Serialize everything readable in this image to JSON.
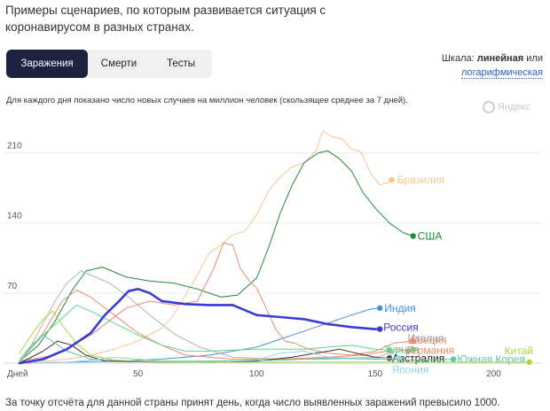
{
  "header": {
    "title": "Примеры сценариев, по которым развивается ситуация с коронавирусом в разных странах."
  },
  "tabs": [
    {
      "label": "Заражения",
      "active": true
    },
    {
      "label": "Смерти",
      "active": false
    },
    {
      "label": "Тесты",
      "active": false
    }
  ],
  "scale": {
    "prefix": "Шкала:",
    "linear": "линейная",
    "or": "или",
    "log": "логарифмическая"
  },
  "note": "Для каждого дня показано число новых случаев на миллион человек (скользящее среднее за 7 дней).",
  "watermark": "Яндекс",
  "footnote": "За точку отсчёта для данной страны принят день, когда число выявленных заражений превысило 1000.",
  "chart_data": {
    "type": "line",
    "xlabel": "Дней",
    "xlim": [
      0,
      220
    ],
    "ylim": [
      0,
      230
    ],
    "xticks": [
      50,
      100,
      150,
      200
    ],
    "yticks": [
      70,
      140,
      210
    ],
    "grid": true,
    "series": [
      {
        "name": "Бразилия",
        "color": "#f7c48e",
        "width": 1,
        "points": [
          [
            0,
            0
          ],
          [
            10,
            2
          ],
          [
            20,
            4
          ],
          [
            30,
            8
          ],
          [
            40,
            14
          ],
          [
            50,
            22
          ],
          [
            60,
            35
          ],
          [
            65,
            48
          ],
          [
            70,
            68
          ],
          [
            75,
            88
          ],
          [
            80,
            110
          ],
          [
            85,
            118
          ],
          [
            90,
            128
          ],
          [
            95,
            132
          ],
          [
            100,
            148
          ],
          [
            105,
            172
          ],
          [
            110,
            186
          ],
          [
            115,
            196
          ],
          [
            120,
            200
          ],
          [
            125,
            212
          ],
          [
            128,
            232
          ],
          [
            132,
            226
          ],
          [
            136,
            224
          ],
          [
            140,
            214
          ],
          [
            144,
            211
          ],
          [
            148,
            190
          ],
          [
            152,
            178
          ],
          [
            155,
            180
          ],
          [
            157,
            183
          ]
        ]
      },
      {
        "name": "США",
        "color": "#1f8a3a",
        "width": 1,
        "points": [
          [
            0,
            2
          ],
          [
            8,
            18
          ],
          [
            15,
            42
          ],
          [
            22,
            72
          ],
          [
            28,
            92
          ],
          [
            35,
            96
          ],
          [
            45,
            86
          ],
          [
            55,
            82
          ],
          [
            65,
            80
          ],
          [
            75,
            74
          ],
          [
            85,
            66
          ],
          [
            92,
            68
          ],
          [
            100,
            85
          ],
          [
            105,
            115
          ],
          [
            110,
            150
          ],
          [
            115,
            178
          ],
          [
            120,
            200
          ],
          [
            126,
            210
          ],
          [
            130,
            212
          ],
          [
            135,
            204
          ],
          [
            140,
            192
          ],
          [
            145,
            170
          ],
          [
            150,
            155
          ],
          [
            156,
            140
          ],
          [
            162,
            130
          ],
          [
            166,
            127
          ]
        ]
      },
      {
        "name": "Индия",
        "color": "#4a90d9",
        "width": 1,
        "points": [
          [
            0,
            0
          ],
          [
            20,
            1
          ],
          [
            40,
            2
          ],
          [
            60,
            4
          ],
          [
            80,
            8
          ],
          [
            100,
            16
          ],
          [
            110,
            24
          ],
          [
            120,
            32
          ],
          [
            130,
            40
          ],
          [
            140,
            48
          ],
          [
            148,
            54
          ],
          [
            152,
            55
          ]
        ]
      },
      {
        "name": "Россия",
        "color": "#3b3bd4",
        "width": 2.6,
        "points": [
          [
            0,
            0
          ],
          [
            10,
            4
          ],
          [
            20,
            14
          ],
          [
            30,
            30
          ],
          [
            36,
            48
          ],
          [
            42,
            62
          ],
          [
            46,
            72
          ],
          [
            50,
            74
          ],
          [
            55,
            70
          ],
          [
            60,
            62
          ],
          [
            70,
            59
          ],
          [
            80,
            58
          ],
          [
            90,
            58
          ],
          [
            100,
            48
          ],
          [
            110,
            46
          ],
          [
            120,
            44
          ],
          [
            130,
            39
          ],
          [
            140,
            36
          ],
          [
            150,
            34
          ],
          [
            152,
            34
          ]
        ]
      },
      {
        "name": "Италия",
        "color": "#b3b3b3",
        "width": 1,
        "points": [
          [
            0,
            4
          ],
          [
            5,
            18
          ],
          [
            10,
            40
          ],
          [
            15,
            62
          ],
          [
            20,
            80
          ],
          [
            26,
            92
          ],
          [
            30,
            88
          ],
          [
            38,
            80
          ],
          [
            46,
            66
          ],
          [
            56,
            46
          ],
          [
            66,
            28
          ],
          [
            76,
            16
          ],
          [
            90,
            6
          ],
          [
            110,
            4
          ],
          [
            130,
            4
          ],
          [
            150,
            6
          ],
          [
            160,
            12
          ],
          [
            166,
            14
          ]
        ]
      },
      {
        "name": "Швеция",
        "color": "#e08e7a",
        "width": 1,
        "points": [
          [
            0,
            2
          ],
          [
            15,
            8
          ],
          [
            30,
            28
          ],
          [
            45,
            55
          ],
          [
            55,
            62
          ],
          [
            65,
            58
          ],
          [
            75,
            62
          ],
          [
            82,
            95
          ],
          [
            86,
            120
          ],
          [
            90,
            118
          ],
          [
            93,
            95
          ],
          [
            97,
            82
          ],
          [
            100,
            75
          ],
          [
            104,
            55
          ],
          [
            108,
            34
          ],
          [
            112,
            22
          ],
          [
            116,
            20
          ],
          [
            122,
            14
          ],
          [
            130,
            10
          ],
          [
            140,
            8
          ],
          [
            150,
            12
          ],
          [
            158,
            20
          ],
          [
            166,
            22
          ]
        ]
      },
      {
        "name": "Германия",
        "color": "#f08a6a",
        "width": 1,
        "points": [
          [
            0,
            2
          ],
          [
            10,
            30
          ],
          [
            18,
            62
          ],
          [
            24,
            73
          ],
          [
            30,
            66
          ],
          [
            40,
            48
          ],
          [
            50,
            30
          ],
          [
            60,
            18
          ],
          [
            70,
            8
          ],
          [
            90,
            4
          ],
          [
            110,
            4
          ],
          [
            130,
            6
          ],
          [
            145,
            8
          ],
          [
            155,
            12
          ],
          [
            160,
            14
          ],
          [
            164,
            12
          ]
        ]
      },
      {
        "name": "Турция",
        "color": "#5ed68a",
        "width": 1,
        "points": [
          [
            0,
            2
          ],
          [
            10,
            28
          ],
          [
            18,
            45
          ],
          [
            24,
            58
          ],
          [
            30,
            52
          ],
          [
            40,
            40
          ],
          [
            50,
            28
          ],
          [
            60,
            18
          ],
          [
            70,
            12
          ],
          [
            80,
            12
          ],
          [
            90,
            13
          ],
          [
            100,
            14
          ],
          [
            110,
            14
          ],
          [
            120,
            14
          ],
          [
            130,
            16
          ],
          [
            140,
            18
          ],
          [
            150,
            14
          ],
          [
            156,
            13
          ]
        ]
      },
      {
        "name": "Австралия",
        "color": "#4a2626",
        "width": 1,
        "points": [
          [
            0,
            0
          ],
          [
            10,
            12
          ],
          [
            16,
            22
          ],
          [
            22,
            18
          ],
          [
            28,
            8
          ],
          [
            36,
            2
          ],
          [
            60,
            1
          ],
          [
            100,
            2
          ],
          [
            115,
            6
          ],
          [
            125,
            10
          ],
          [
            135,
            14
          ],
          [
            142,
            10
          ],
          [
            150,
            6
          ],
          [
            156,
            5
          ]
        ]
      },
      {
        "name": "Япония",
        "color": "#9bd1f0",
        "width": 1,
        "points": [
          [
            0,
            0
          ],
          [
            20,
            1
          ],
          [
            30,
            3
          ],
          [
            40,
            6
          ],
          [
            50,
            4
          ],
          [
            60,
            2
          ],
          [
            80,
            1
          ],
          [
            100,
            3
          ],
          [
            110,
            10
          ],
          [
            120,
            12
          ],
          [
            130,
            6
          ],
          [
            140,
            5
          ],
          [
            150,
            5
          ],
          [
            160,
            5
          ]
        ]
      },
      {
        "name": "Южная Корея",
        "color": "#5fc8a8",
        "width": 1,
        "points": [
          [
            0,
            0
          ],
          [
            5,
            18
          ],
          [
            10,
            28
          ],
          [
            15,
            20
          ],
          [
            20,
            12
          ],
          [
            30,
            4
          ],
          [
            50,
            2
          ],
          [
            80,
            2
          ],
          [
            110,
            3
          ],
          [
            130,
            5
          ],
          [
            150,
            4
          ],
          [
            170,
            3
          ],
          [
            183,
            4
          ]
        ]
      },
      {
        "name": "Китай",
        "color": "#a8d940",
        "width": 1,
        "points": [
          [
            0,
            10
          ],
          [
            5,
            28
          ],
          [
            10,
            44
          ],
          [
            14,
            52
          ],
          [
            18,
            38
          ],
          [
            24,
            20
          ],
          [
            30,
            8
          ],
          [
            40,
            3
          ],
          [
            60,
            1
          ],
          [
            100,
            1
          ],
          [
            150,
            1
          ],
          [
            200,
            1
          ],
          [
            215,
            1
          ]
        ]
      }
    ]
  }
}
